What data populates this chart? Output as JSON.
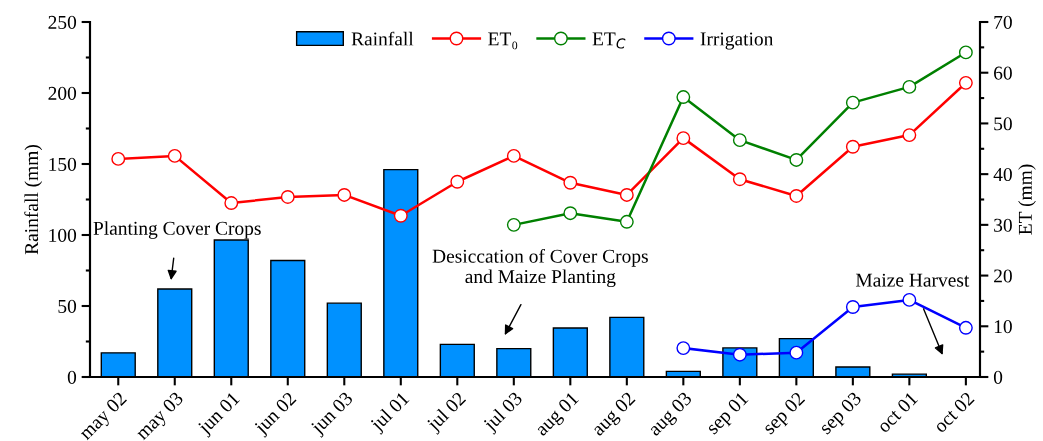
{
  "chart_data": {
    "type": "bar",
    "categories": [
      "may 02",
      "may 03",
      "jun 01",
      "jun 02",
      "jun 03",
      "jul 01",
      "jul 02",
      "jul 03",
      "aug 01",
      "aug 02",
      "aug 03",
      "sep 01",
      "sep 02",
      "sep 03",
      "oct 01",
      "oct 02"
    ],
    "ylabel": "Rainfall (mm)",
    "y2label": "ET (mm)",
    "ylim": [
      0,
      250
    ],
    "yticks": [
      0,
      {
        "value": 25,
        "label": null
      },
      50,
      {
        "value": 75,
        "label": null
      },
      100,
      {
        "value": 125,
        "label": null
      },
      150,
      {
        "value": 175,
        "label": null
      },
      200,
      {
        "value": 225,
        "label": null
      },
      250
    ],
    "y2lim": [
      0,
      70
    ],
    "y2ticks": [
      0,
      {
        "value": 5,
        "label": null
      },
      10,
      {
        "value": 15,
        "label": null
      },
      20,
      {
        "value": 25,
        "label": null
      },
      30,
      {
        "value": 35,
        "label": null
      },
      40,
      {
        "value": 45,
        "label": null
      },
      50,
      {
        "value": 55,
        "label": null
      },
      60,
      {
        "value": 65,
        "label": null
      },
      70
    ],
    "series": [
      {
        "name": "Rainfall",
        "color": "#0091ff",
        "values": [
          17,
          62,
          96.5,
          82,
          52,
          146,
          23,
          20,
          34.5,
          42,
          4,
          20.5,
          27,
          7,
          2,
          null
        ]
      },
      {
        "name": "ET₀",
        "type": "line",
        "axis": "y2",
        "color": "#ff0000",
        "values": [
          43,
          43.6,
          34.3,
          35.5,
          35.9,
          31.8,
          38.5,
          43.6,
          38.3,
          35.9,
          47.1,
          39,
          35.7,
          45.4,
          47.7,
          58
        ]
      },
      {
        "name": "ET$_{C}$",
        "type": "line",
        "axis": "y2",
        "color": "#008000",
        "values": [
          null,
          null,
          null,
          null,
          null,
          null,
          null,
          30,
          32.3,
          30.6,
          55.2,
          46.7,
          42.8,
          54.1,
          57.2,
          64
        ]
      },
      {
        "name": "Irrigation",
        "type": "line",
        "axis": "y2",
        "color": "#0000ff",
        "values": [
          null,
          null,
          null,
          null,
          null,
          null,
          null,
          null,
          null,
          null,
          5.7,
          4.4,
          4.8,
          13.8,
          15.2,
          9.7
        ]
      }
    ],
    "marker": "circle",
    "line_style": "solid",
    "legend": "top",
    "grid": false,
    "annotations": [
      "Planting Cover Crops",
      "Desiccation of Cover Crops\nand Maize Planting",
      "Maize Harvest"
    ]
  }
}
